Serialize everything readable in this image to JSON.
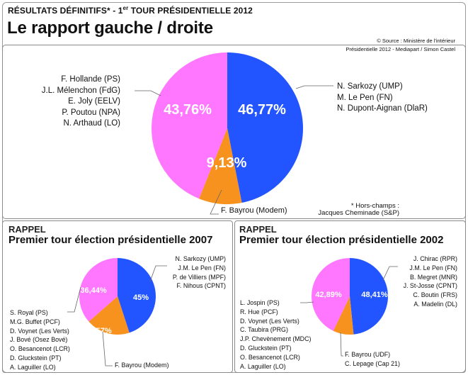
{
  "header": {
    "kicker_pre": "RÉSULTATS DÉFINITIFS* - 1",
    "kicker_sup": "er",
    "kicker_post": " TOUR PRÉSIDENTIELLE 2012",
    "title": "Le rapport gauche / droite",
    "source_line1": "© Source : Ministère de l'intérieur",
    "source_line2": "Présidentielle 2012 - Mediapart / Simon Castel"
  },
  "note": {
    "line1": "* Hors-champs :",
    "line2": "Jacques Cheminade (S&P)"
  },
  "colors": {
    "gauche": "#ff77ff",
    "droite": "#2255ff",
    "centre": "#f8921e"
  },
  "chart_data": [
    {
      "type": "pie",
      "title": "Le rapport gauche / droite",
      "categories": [
        "Droite",
        "Centre",
        "Gauche"
      ],
      "values": [
        46.77,
        9.13,
        43.76
      ],
      "labels": [
        "46,77%",
        "9,13%",
        "43,76%"
      ],
      "groups": {
        "gauche": [
          "F. Hollande (PS)",
          "J.L. Mélenchon (FdG)",
          "E. Joly (EELV)",
          "P. Poutou (NPA)",
          "N. Arthaud (LO)"
        ],
        "droite": [
          "N. Sarkozy (UMP)",
          "M. Le Pen (FN)",
          "N. Dupont-Aignan (DlaR)"
        ],
        "centre": [
          "F. Bayrou (Modem)"
        ]
      }
    },
    {
      "type": "pie",
      "rappel": "RAPPEL",
      "title": "Premier tour élection présidentielle 2007",
      "categories": [
        "Droite",
        "Centre",
        "Gauche"
      ],
      "values": [
        45.0,
        18.57,
        36.44
      ],
      "labels": [
        "45%",
        "18,57%",
        "36,44%"
      ],
      "groups": {
        "gauche": [
          "S. Royal (PS)",
          "M.G. Buffet (PCF)",
          "D. Voynet (Les Verts)",
          "J. Bové (Osez Bové)",
          "O. Besancenot (LCR)",
          "D. Gluckstein (PT)",
          "A. Laguiller (LO)"
        ],
        "droite": [
          "N. Sarkozy (UMP)",
          "J.M. Le Pen (FN)",
          "P. de Villiers (MPF)",
          "F. Nihous (CPNT)"
        ],
        "centre": [
          "F. Bayrou (Modem)"
        ]
      }
    },
    {
      "type": "pie",
      "rappel": "RAPPEL",
      "title": "Premier tour élection présidentielle 2002",
      "categories": [
        "Droite",
        "Centre",
        "Gauche"
      ],
      "values": [
        48.41,
        8.72,
        42.89
      ],
      "labels": [
        "48,41%",
        "8,72%",
        "42,89%"
      ],
      "groups": {
        "gauche": [
          "L. Jospin (PS)",
          "R. Hue (PCF)",
          "D. Voynet (Les Verts)",
          "C. Taubira (PRG)",
          "J.P. Chevènement (MDC)",
          "D. Gluckstein (PT)",
          "O. Besancenot (LCR)",
          "A. Laguiller (LO)"
        ],
        "droite": [
          "J. Chirac (RPR)",
          "J.M. Le Pen (FN)",
          "B. Megret (MNR)",
          "J. St-Josse (CPNT)",
          "C. Boutin (FRS)",
          "A. Madelin (DL)"
        ],
        "centre": [
          "F. Bayrou (UDF)",
          "C. Lepage (Cap 21)"
        ]
      }
    }
  ]
}
